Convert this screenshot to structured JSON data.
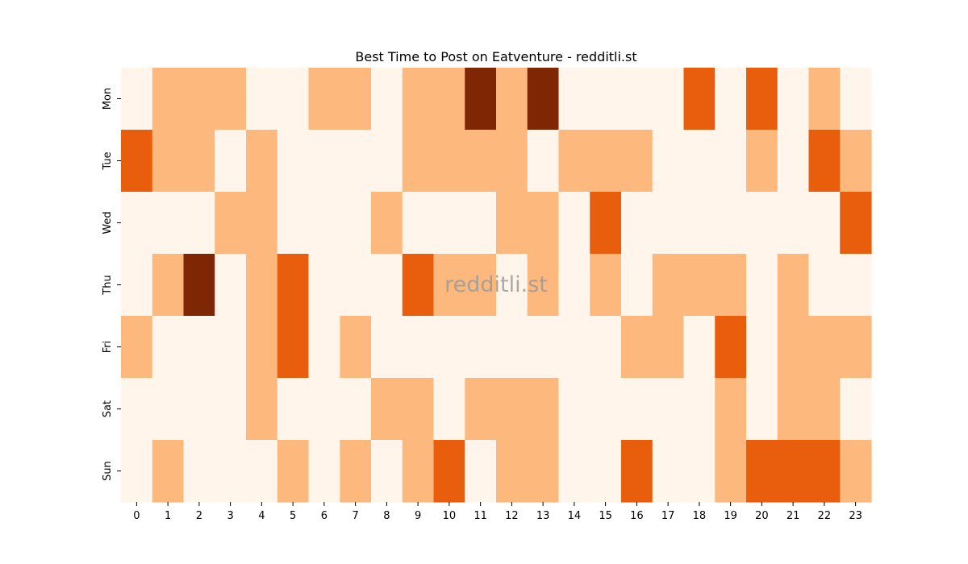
{
  "chart_data": {
    "type": "heatmap",
    "title": "Best Time to Post on Eatventure - redditli.st",
    "watermark": "redditli.st",
    "x_labels": [
      "0",
      "1",
      "2",
      "3",
      "4",
      "5",
      "6",
      "7",
      "8",
      "9",
      "10",
      "11",
      "12",
      "13",
      "14",
      "15",
      "16",
      "17",
      "18",
      "19",
      "20",
      "21",
      "22",
      "23"
    ],
    "y_labels": [
      "Mon",
      "Tue",
      "Wed",
      "Thu",
      "Fri",
      "Sat",
      "Sun"
    ],
    "color_scale": [
      "#fff5eb",
      "#fdb97d",
      "#e95e0d",
      "#7f2704"
    ],
    "values": [
      [
        0,
        1,
        1,
        1,
        0,
        0,
        1,
        1,
        0,
        1,
        1,
        3,
        1,
        3,
        0,
        0,
        0,
        0,
        2,
        0,
        2,
        0,
        1,
        0
      ],
      [
        2,
        1,
        1,
        0,
        1,
        0,
        0,
        0,
        0,
        1,
        1,
        1,
        1,
        0,
        1,
        1,
        1,
        0,
        0,
        0,
        1,
        0,
        2,
        1
      ],
      [
        0,
        0,
        0,
        1,
        1,
        0,
        0,
        0,
        1,
        0,
        0,
        0,
        1,
        1,
        0,
        2,
        0,
        0,
        0,
        0,
        0,
        0,
        0,
        2
      ],
      [
        0,
        1,
        3,
        0,
        1,
        2,
        0,
        0,
        0,
        2,
        1,
        1,
        0,
        1,
        0,
        1,
        0,
        1,
        1,
        1,
        0,
        1,
        0,
        0
      ],
      [
        1,
        0,
        0,
        0,
        1,
        2,
        0,
        1,
        0,
        0,
        0,
        0,
        0,
        0,
        0,
        0,
        1,
        1,
        0,
        2,
        0,
        1,
        1,
        1
      ],
      [
        0,
        0,
        0,
        0,
        1,
        0,
        0,
        0,
        1,
        1,
        0,
        1,
        1,
        1,
        0,
        0,
        0,
        0,
        0,
        1,
        0,
        1,
        1,
        0
      ],
      [
        0,
        1,
        0,
        0,
        0,
        1,
        0,
        1,
        0,
        1,
        2,
        0,
        1,
        1,
        0,
        0,
        2,
        0,
        0,
        1,
        2,
        2,
        2,
        1
      ]
    ]
  }
}
